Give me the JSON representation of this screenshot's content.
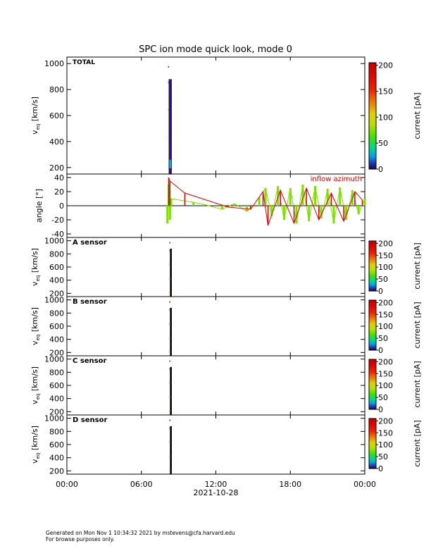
{
  "title": "SPC ion mode quick look, mode 0",
  "footer": {
    "line1": "Generated on Mon Nov  1 10:34:32 2021 by mstevens@cfa.harvard.edu",
    "line2": "For browse purposes only."
  },
  "colors": {
    "background": "#ffffff",
    "axis": "#000000",
    "velocity_band_total": "#2a1468",
    "velocity_band_sensor": "#000000",
    "angle_green": "#7ee000",
    "angle_red": "#e00000",
    "angle_label": "#e00000"
  },
  "chart_data": [
    {
      "type": "heatmap",
      "panel": "total",
      "label": "TOTAL",
      "ylabel": "v_eq [km/s]",
      "ylabel_main": "v",
      "ylabel_sub": "eq",
      "ylabel_unit": "[km/s]",
      "ylim": [
        150,
        1050
      ],
      "yticks": [
        200,
        400,
        600,
        800,
        1000
      ],
      "xlim": [
        0,
        24
      ],
      "band": {
        "x_start": 8.2,
        "x_end": 8.45,
        "y_start": 150,
        "y_end": 880
      },
      "colorbar": {
        "label": "current [pA]",
        "ticks": [
          0,
          50,
          100,
          150,
          200
        ],
        "range": [
          0,
          205
        ]
      }
    },
    {
      "type": "line",
      "panel": "angle",
      "label": "inflow azimuth",
      "ylabel": "angle [°]",
      "ylim": [
        -45,
        45
      ],
      "yticks": [
        -40,
        -20,
        0,
        20,
        40
      ],
      "xlim": [
        0,
        24
      ],
      "zero_line": 0,
      "series": [
        {
          "color": "green",
          "x": [
            8.1,
            8.2,
            8.3,
            8.4,
            10.2,
            11.0,
            12.5,
            13.5,
            14.5,
            15.0,
            15.5,
            16.0,
            16.5,
            17.0,
            17.5,
            18.0,
            18.5,
            19.0,
            19.5,
            20.0,
            20.5,
            21.0,
            21.5,
            22.0,
            22.5,
            23.0,
            23.5,
            24.0
          ],
          "y": [
            -25,
            30,
            -20,
            10,
            5,
            2,
            -5,
            3,
            -8,
            0,
            12,
            25,
            -15,
            28,
            -20,
            25,
            -25,
            30,
            -22,
            28,
            -18,
            24,
            -25,
            26,
            -20,
            22,
            -12,
            10
          ]
        },
        {
          "color": "red",
          "x": [
            8.2,
            8.3,
            9.5,
            13.0,
            14.8,
            15.8,
            16.2,
            17.2,
            18.3,
            19.3,
            20.3,
            21.3,
            22.3,
            23.2,
            23.8
          ],
          "y": [
            40,
            35,
            18,
            -2,
            -5,
            20,
            -28,
            22,
            -25,
            25,
            -20,
            18,
            -22,
            20,
            8
          ]
        }
      ]
    },
    {
      "type": "heatmap",
      "panel": "A",
      "label": "A sensor",
      "ylabel": "v_eq [km/s]",
      "ylabel_main": "v",
      "ylabel_sub": "eq",
      "ylabel_unit": "[km/s]",
      "ylim": [
        150,
        1050
      ],
      "yticks": [
        200,
        400,
        600,
        800,
        1000
      ],
      "xlim": [
        0,
        24
      ],
      "band": {
        "x_start": 8.3,
        "x_end": 8.45,
        "y_start": 150,
        "y_end": 880
      },
      "colorbar": {
        "label": "current [pA]",
        "ticks": [
          0,
          50,
          100,
          150,
          200
        ],
        "range": [
          0,
          210
        ]
      }
    },
    {
      "type": "heatmap",
      "panel": "B",
      "label": "B sensor",
      "ylabel": "v_eq [km/s]",
      "ylabel_main": "v",
      "ylabel_sub": "eq",
      "ylabel_unit": "[km/s]",
      "ylim": [
        150,
        1050
      ],
      "yticks": [
        200,
        400,
        600,
        800,
        1000
      ],
      "xlim": [
        0,
        24
      ],
      "band": {
        "x_start": 8.3,
        "x_end": 8.45,
        "y_start": 150,
        "y_end": 880
      },
      "colorbar": {
        "label": "current [pA]",
        "ticks": [
          0,
          50,
          100,
          150,
          200
        ],
        "range": [
          0,
          210
        ]
      }
    },
    {
      "type": "heatmap",
      "panel": "C",
      "label": "C sensor",
      "ylabel": "v_eq [km/s]",
      "ylabel_main": "v",
      "ylabel_sub": "eq",
      "ylabel_unit": "[km/s]",
      "ylim": [
        150,
        1050
      ],
      "yticks": [
        200,
        400,
        600,
        800,
        1000
      ],
      "xlim": [
        0,
        24
      ],
      "band": {
        "x_start": 8.3,
        "x_end": 8.45,
        "y_start": 150,
        "y_end": 880
      },
      "colorbar": {
        "label": "current [pA]",
        "ticks": [
          0,
          50,
          100,
          150,
          200
        ],
        "range": [
          0,
          210
        ]
      }
    },
    {
      "type": "heatmap",
      "panel": "D",
      "label": "D sensor",
      "ylabel": "v_eq [km/s]",
      "ylabel_main": "v",
      "ylabel_sub": "eq",
      "ylabel_unit": "[km/s]",
      "ylim": [
        150,
        1050
      ],
      "yticks": [
        200,
        400,
        600,
        800,
        1000
      ],
      "xlim": [
        0,
        24
      ],
      "band": {
        "x_start": 8.3,
        "x_end": 8.45,
        "y_start": 150,
        "y_end": 880
      },
      "colorbar": {
        "label": "current [pA]",
        "ticks": [
          0,
          50,
          100,
          150,
          200
        ],
        "range": [
          0,
          210
        ]
      }
    }
  ],
  "x_axis": {
    "ticks": [
      0,
      6,
      12,
      18,
      24
    ],
    "tick_labels": [
      "00:00",
      "06:00",
      "12:00",
      "18:00",
      "00:00"
    ],
    "date_label": "2021-10-28"
  }
}
